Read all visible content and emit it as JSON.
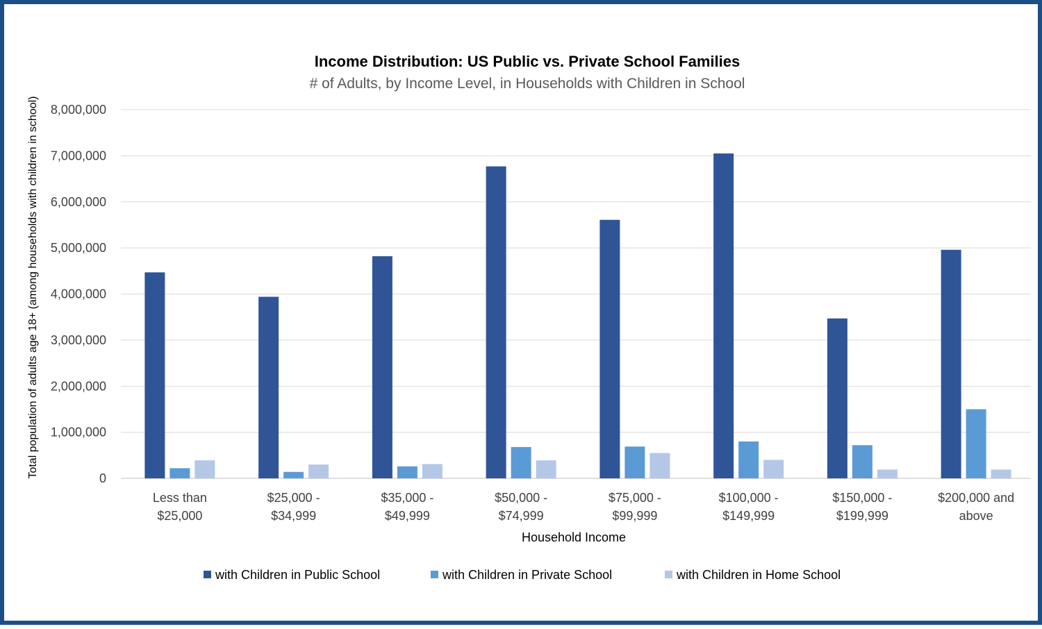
{
  "chart_data": {
    "type": "bar",
    "title": "Income Distribution: US Public vs. Private School Families",
    "subtitle": "# of Adults, by Income Level, in Households with Children in School",
    "xlabel": "Household Income",
    "ylabel": "Total population of adults age 18+ (among  households with children in school)",
    "ylim": [
      0,
      8000000
    ],
    "yticks": [
      0,
      1000000,
      2000000,
      3000000,
      4000000,
      5000000,
      6000000,
      7000000,
      8000000
    ],
    "ytick_labels": [
      "0",
      "1,000,000",
      "2,000,000",
      "3,000,000",
      "4,000,000",
      "5,000,000",
      "6,000,000",
      "7,000,000",
      "8,000,000"
    ],
    "categories": [
      [
        "Less than",
        "$25,000"
      ],
      [
        "$25,000 -",
        "$34,999"
      ],
      [
        "$35,000 -",
        "$49,999"
      ],
      [
        "$50,000 -",
        "$74,999"
      ],
      [
        "$75,000 -",
        "$99,999"
      ],
      [
        "$100,000 -",
        "$149,999"
      ],
      [
        "$150,000 -",
        "$199,999"
      ],
      [
        "$200,000 and",
        "above"
      ]
    ],
    "series": [
      {
        "name": "with Children in Public School",
        "color": "#2f5597",
        "values": [
          4470000,
          3940000,
          4820000,
          6770000,
          5610000,
          7050000,
          3470000,
          4960000
        ]
      },
      {
        "name": "with Children in Private School",
        "color": "#5b9bd5",
        "values": [
          220000,
          140000,
          260000,
          680000,
          690000,
          800000,
          720000,
          1500000
        ]
      },
      {
        "name": "with Children in Home School",
        "color": "#b4c7e7",
        "values": [
          390000,
          300000,
          310000,
          390000,
          550000,
          400000,
          190000,
          190000
        ]
      }
    ],
    "grid": true,
    "legend_position": "bottom"
  }
}
